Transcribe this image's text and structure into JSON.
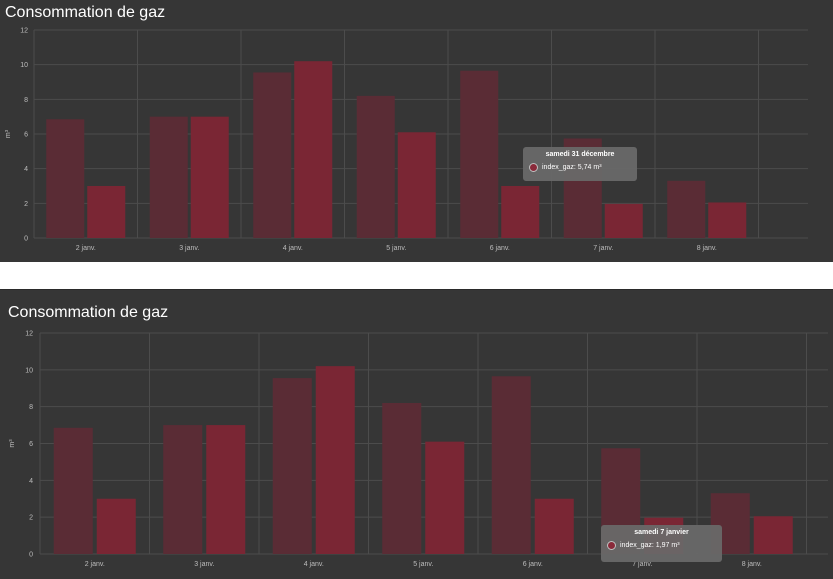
{
  "colors": {
    "background": "#363636",
    "series_prev": "#5a2c35",
    "series_curr": "#7a2634",
    "separator": "#ffffff"
  },
  "chart_data": [
    {
      "type": "bar",
      "title": "Consommation de gaz",
      "ylabel": "m³",
      "ylim": [
        0,
        12
      ],
      "yticks": [
        "0",
        "2",
        "4",
        "6",
        "8",
        "10",
        "12"
      ],
      "categories": [
        "2 janv.",
        "3 janv.",
        "4 janv.",
        "5 janv.",
        "6 janv.",
        "7 janv.",
        "8 janv."
      ],
      "series": [
        {
          "values": [
            6.85,
            7.0,
            9.55,
            8.2,
            9.65,
            5.74,
            3.3
          ]
        },
        {
          "name": "index_gaz",
          "values": [
            3.0,
            7.0,
            10.2,
            6.1,
            3.0,
            1.97,
            2.05
          ]
        }
      ],
      "grid": true,
      "tooltip": {
        "title": "samedi 31 décembre",
        "label": "index_gaz: 5,74 m³"
      }
    },
    {
      "type": "bar",
      "title": "Consommation de gaz",
      "ylabel": "m³",
      "ylim": [
        0,
        12
      ],
      "yticks": [
        "0",
        "2",
        "4",
        "6",
        "8",
        "10",
        "12"
      ],
      "categories": [
        "2 janv.",
        "3 janv.",
        "4 janv.",
        "5 janv.",
        "6 janv.",
        "7 janv.",
        "8 janv."
      ],
      "series": [
        {
          "values": [
            6.85,
            7.0,
            9.55,
            8.2,
            9.65,
            5.74,
            3.3
          ]
        },
        {
          "name": "index_gaz",
          "values": [
            3.0,
            7.0,
            10.2,
            6.1,
            3.0,
            1.97,
            2.05
          ]
        }
      ],
      "grid": true,
      "tooltip": {
        "title": "samedi 7 janvier",
        "label": "index_gaz: 1,97 m³"
      }
    }
  ]
}
